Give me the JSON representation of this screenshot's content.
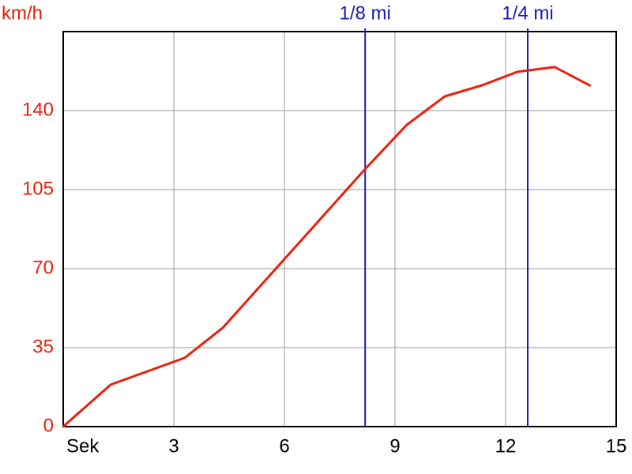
{
  "chart_data": {
    "type": "line",
    "y_label": "km/h",
    "x": [
      0,
      1.29,
      3.3,
      4.33,
      6.0,
      8.19,
      9.32,
      10.35,
      11.36,
      12.32,
      13.33,
      14.31
    ],
    "series": [
      {
        "name": "km/h",
        "color": "#e8200a",
        "values": [
          0,
          18.6,
          30.5,
          43.8,
          74.2,
          114.1,
          133.7,
          146.3,
          151.2,
          157.2,
          159.3,
          150.9
        ]
      }
    ],
    "xlim": [
      0,
      15
    ],
    "xticks": [
      {
        "value": 0,
        "label": "Sek"
      },
      3,
      6,
      9,
      12,
      15
    ],
    "ylim": [
      0,
      175
    ],
    "yticks": [
      0,
      35,
      70,
      105,
      140
    ],
    "grid": true,
    "grid_color": "#999999",
    "y_label_color": "#e8200a",
    "markers": [
      {
        "label": "1/8 mi",
        "x": 8.19,
        "color": "#1a1ab8"
      },
      {
        "label": "1/4 mi",
        "x": 12.6,
        "color": "#1a1ab8"
      }
    ]
  }
}
